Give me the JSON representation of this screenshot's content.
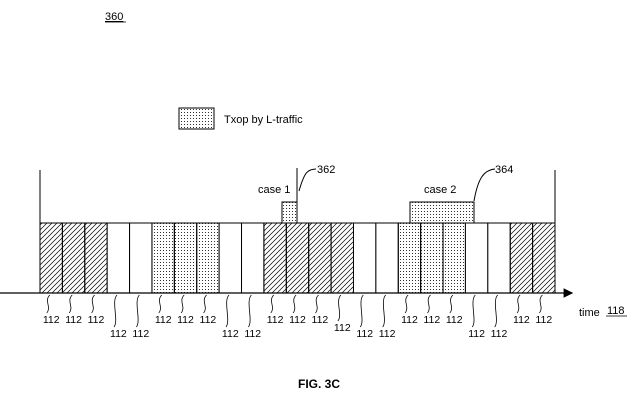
{
  "figure": {
    "ref_number": "360",
    "caption": "FIG. 3C"
  },
  "legend": {
    "label": "Txop by L-traffic",
    "swatch_pattern": "dots"
  },
  "axis": {
    "label": "time",
    "ref_number": "118"
  },
  "cases": [
    {
      "label": "case 1",
      "ref": "362"
    },
    {
      "label": "case 2",
      "ref": "364"
    }
  ],
  "slots": [
    {
      "pattern": "hatch",
      "label": "112",
      "row": "upper"
    },
    {
      "pattern": "hatch",
      "label": "112",
      "row": "upper"
    },
    {
      "pattern": "hatch",
      "label": "112",
      "row": "upper"
    },
    {
      "pattern": "blank",
      "label": "112",
      "row": "lower"
    },
    {
      "pattern": "blank",
      "label": "112",
      "row": "lower"
    },
    {
      "pattern": "dots",
      "label": "112",
      "row": "upper"
    },
    {
      "pattern": "dots",
      "label": "112",
      "row": "upper"
    },
    {
      "pattern": "dots",
      "label": "112",
      "row": "upper"
    },
    {
      "pattern": "blank",
      "label": "112",
      "row": "lower"
    },
    {
      "pattern": "blank",
      "label": "112",
      "row": "lower"
    },
    {
      "pattern": "hatch",
      "label": "112",
      "row": "upper"
    },
    {
      "pattern": "hatch",
      "label": "112",
      "row": "upper"
    },
    {
      "pattern": "hatch",
      "label": "112",
      "row": "upper"
    },
    {
      "pattern": "hatch",
      "label": "112",
      "row": "middle"
    },
    {
      "pattern": "blank",
      "label": "112",
      "row": "lower"
    },
    {
      "pattern": "blank",
      "label": "112",
      "row": "lower"
    },
    {
      "pattern": "dots",
      "label": "112",
      "row": "upper"
    },
    {
      "pattern": "dots",
      "label": "112",
      "row": "upper"
    },
    {
      "pattern": "dots",
      "label": "112",
      "row": "upper"
    },
    {
      "pattern": "blank",
      "label": "112",
      "row": "lower"
    },
    {
      "pattern": "blank",
      "label": "112",
      "row": "lower"
    },
    {
      "pattern": "hatch",
      "label": "112",
      "row": "upper"
    },
    {
      "pattern": "hatch",
      "label": "112",
      "row": "upper"
    }
  ]
}
